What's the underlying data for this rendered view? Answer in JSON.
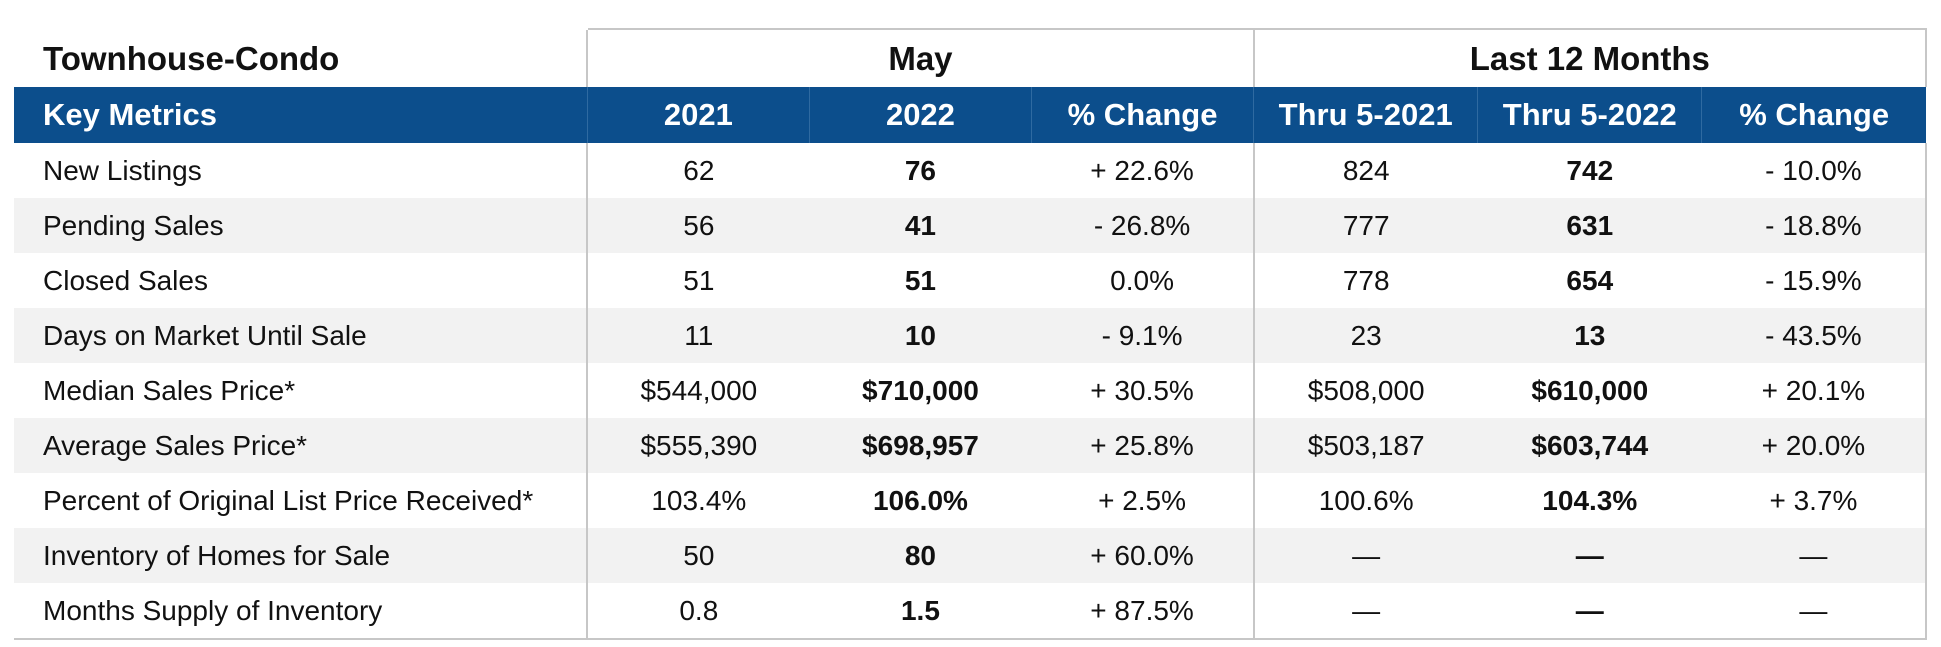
{
  "table": {
    "title": "Townhouse-Condo",
    "group_may": "May",
    "group_last12": "Last 12 Months",
    "columns": [
      "Key Metrics",
      "2021",
      "2022",
      "% Change",
      "Thru 5-2021",
      "Thru 5-2022",
      "% Change"
    ],
    "rows": [
      {
        "metric": "New Listings",
        "may_2021": "62",
        "may_2022": "76",
        "may_change": "+ 22.6%",
        "thru_2021": "824",
        "thru_2022": "742",
        "thru_change": "- 10.0%"
      },
      {
        "metric": "Pending Sales",
        "may_2021": "56",
        "may_2022": "41",
        "may_change": "- 26.8%",
        "thru_2021": "777",
        "thru_2022": "631",
        "thru_change": "- 18.8%"
      },
      {
        "metric": "Closed Sales",
        "may_2021": "51",
        "may_2022": "51",
        "may_change": "0.0%",
        "thru_2021": "778",
        "thru_2022": "654",
        "thru_change": "- 15.9%"
      },
      {
        "metric": "Days on Market Until Sale",
        "may_2021": "11",
        "may_2022": "10",
        "may_change": "- 9.1%",
        "thru_2021": "23",
        "thru_2022": "13",
        "thru_change": "- 43.5%"
      },
      {
        "metric": "Median Sales Price*",
        "may_2021": "$544,000",
        "may_2022": "$710,000",
        "may_change": "+ 30.5%",
        "thru_2021": "$508,000",
        "thru_2022": "$610,000",
        "thru_change": "+ 20.1%"
      },
      {
        "metric": "Average Sales Price*",
        "may_2021": "$555,390",
        "may_2022": "$698,957",
        "may_change": "+ 25.8%",
        "thru_2021": "$503,187",
        "thru_2022": "$603,744",
        "thru_change": "+ 20.0%"
      },
      {
        "metric": "Percent of Original List Price Received*",
        "may_2021": "103.4%",
        "may_2022": "106.0%",
        "may_change": "+ 2.5%",
        "thru_2021": "100.6%",
        "thru_2022": "104.3%",
        "thru_change": "+ 3.7%"
      },
      {
        "metric": "Inventory of Homes for Sale",
        "may_2021": "50",
        "may_2022": "80",
        "may_change": "+ 60.0%",
        "thru_2021": "—",
        "thru_2022": "—",
        "thru_change": "—"
      },
      {
        "metric": "Months Supply of Inventory",
        "may_2021": "0.8",
        "may_2022": "1.5",
        "may_change": "+ 87.5%",
        "thru_2021": "—",
        "thru_2022": "—",
        "thru_change": "—"
      }
    ]
  },
  "colors": {
    "header_bg": "#0c4e8c",
    "header_text": "#ffffff",
    "row_alt_bg": "#f2f2f2",
    "border": "#c7c7c7"
  }
}
